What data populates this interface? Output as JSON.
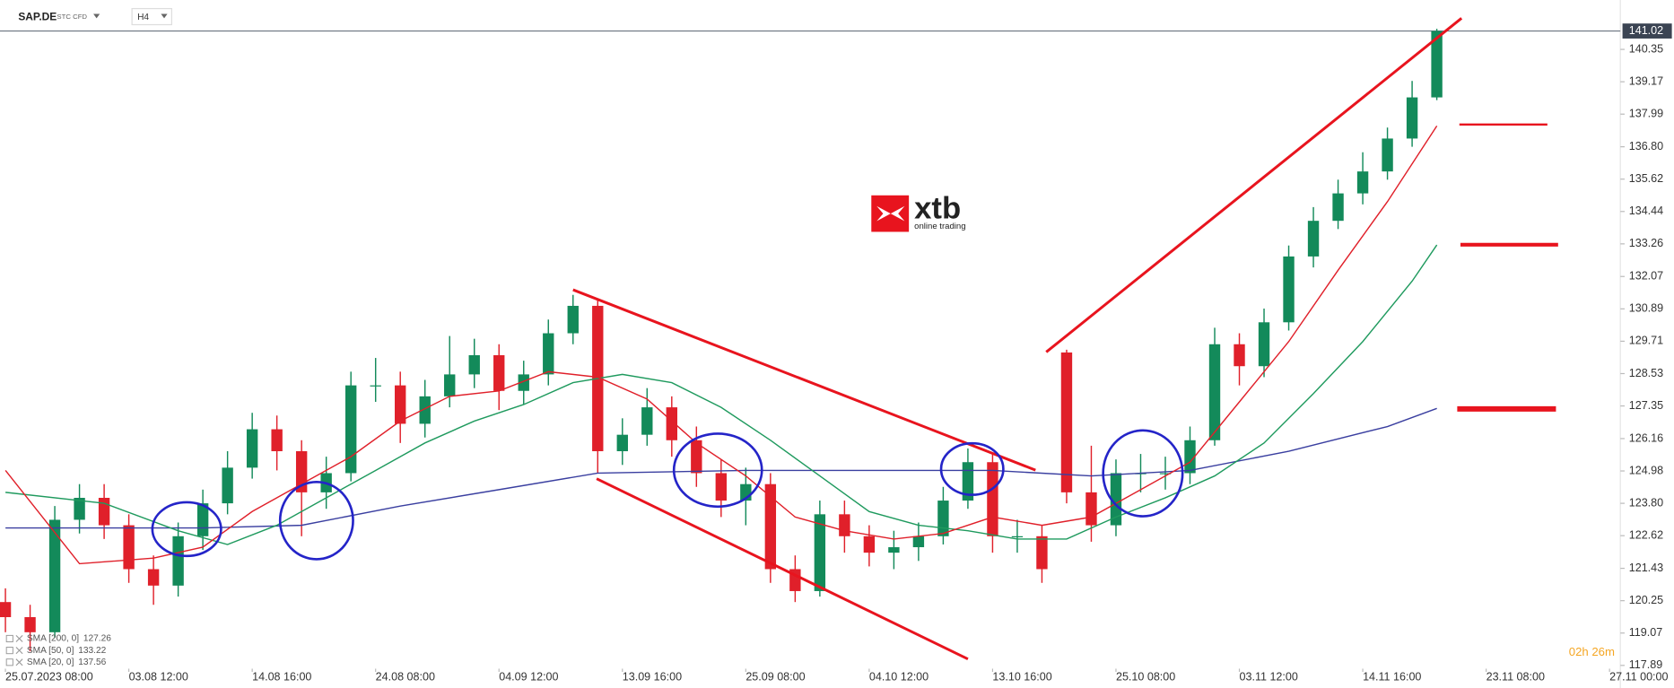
{
  "toolbar": {
    "symbol": "SAP.DE",
    "instrument_type": "STC CFD",
    "timeframe": "H4"
  },
  "logo": {
    "brand": "xtb",
    "tagline": "online trading"
  },
  "timer": "02h 26m",
  "chart_data": {
    "type": "candlestick",
    "up_color": "#138a5a",
    "down_color": "#e0202a",
    "open": [
      120.2,
      119.65,
      119.1,
      123.2,
      124.0,
      123.0,
      121.4,
      120.8,
      122.6,
      123.8,
      125.1,
      126.5,
      125.7,
      124.2,
      124.9,
      128.1,
      128.1,
      126.7,
      127.7,
      128.5,
      129.2,
      127.9,
      128.5,
      130.0,
      131.0,
      125.7,
      126.3,
      127.3,
      126.1,
      124.9,
      123.9,
      124.5,
      121.4,
      120.6,
      123.4,
      122.6,
      122.0,
      122.2,
      122.6,
      123.9,
      125.3,
      122.6,
      122.6,
      129.3,
      124.2,
      123.0,
      124.9,
      124.9,
      124.9,
      126.1,
      129.6,
      128.8,
      130.4,
      132.8,
      134.1,
      135.1,
      135.9,
      137.1,
      138.6
    ],
    "high": [
      120.7,
      120.1,
      123.7,
      124.5,
      124.5,
      123.4,
      121.9,
      123.1,
      124.3,
      125.7,
      127.1,
      127.0,
      126.1,
      125.5,
      128.6,
      129.1,
      128.6,
      128.3,
      129.9,
      129.8,
      129.6,
      129.0,
      130.5,
      131.4,
      131.2,
      126.9,
      128.0,
      127.7,
      126.6,
      125.4,
      125.1,
      124.9,
      121.9,
      123.9,
      123.9,
      123.0,
      122.8,
      123.1,
      124.4,
      125.8,
      125.6,
      123.2,
      123.0,
      129.4,
      125.9,
      125.4,
      125.6,
      125.5,
      126.6,
      130.2,
      130.0,
      130.9,
      133.2,
      134.6,
      135.6,
      136.6,
      137.5,
      139.2,
      141.1
    ],
    "low": [
      119.1,
      118.4,
      118.9,
      122.7,
      122.5,
      120.9,
      120.1,
      120.4,
      122.1,
      123.4,
      124.7,
      125.0,
      122.6,
      123.6,
      124.6,
      127.5,
      126.0,
      126.2,
      127.3,
      128.0,
      127.2,
      127.4,
      128.1,
      129.6,
      124.9,
      125.2,
      125.9,
      125.5,
      124.4,
      123.3,
      123.0,
      120.9,
      120.2,
      120.4,
      122.0,
      121.5,
      121.4,
      121.7,
      122.3,
      123.6,
      122.0,
      122.0,
      120.9,
      123.8,
      122.4,
      122.6,
      124.2,
      124.3,
      124.5,
      125.9,
      128.1,
      128.4,
      130.1,
      132.4,
      133.8,
      134.7,
      135.6,
      136.8,
      138.5
    ],
    "close": [
      119.65,
      119.1,
      123.2,
      124.0,
      123.0,
      121.4,
      120.8,
      122.6,
      123.8,
      125.1,
      126.5,
      125.7,
      124.2,
      124.9,
      128.1,
      128.1,
      126.7,
      127.7,
      128.5,
      129.2,
      127.9,
      128.5,
      130.0,
      131.0,
      125.7,
      126.3,
      127.3,
      126.1,
      124.9,
      123.9,
      124.5,
      121.4,
      120.6,
      123.4,
      122.6,
      122.0,
      122.2,
      122.6,
      123.9,
      125.3,
      122.6,
      122.6,
      121.4,
      124.2,
      123.0,
      124.9,
      124.9,
      124.9,
      126.1,
      129.6,
      128.8,
      130.4,
      132.8,
      134.1,
      135.1,
      135.9,
      137.1,
      138.6,
      141.02
    ],
    "series": [
      {
        "name": "SMA [200, 0]",
        "color": "#3a3fa0",
        "x": [
          0,
          5,
          8,
          12,
          16,
          20,
          24,
          30,
          36,
          40,
          44,
          48,
          52,
          56,
          58
        ],
        "values": [
          122.9,
          122.9,
          122.9,
          123.0,
          123.7,
          124.3,
          124.9,
          125.0,
          125.0,
          125.0,
          124.8,
          125.0,
          125.7,
          126.6,
          127.26
        ]
      },
      {
        "name": "SMA [50, 0]",
        "color": "#1f9a5e",
        "x": [
          0,
          4,
          7,
          9,
          11,
          13,
          15,
          17,
          19,
          21,
          23,
          25,
          27,
          29,
          31,
          33,
          35,
          37,
          39,
          41,
          43,
          45,
          47,
          49,
          51,
          53,
          55,
          57,
          58
        ],
        "values": [
          124.2,
          123.8,
          122.8,
          122.3,
          123.0,
          124.0,
          125.0,
          126.0,
          126.8,
          127.4,
          128.2,
          128.5,
          128.2,
          127.3,
          126.1,
          124.8,
          123.5,
          123.0,
          122.8,
          122.5,
          122.5,
          123.3,
          124.0,
          124.8,
          126.0,
          127.8,
          129.7,
          131.9,
          133.22
        ]
      },
      {
        "name": "SMA [20, 0]",
        "color": "#e0202a",
        "x": [
          0,
          3,
          6,
          8,
          10,
          12,
          14,
          16,
          18,
          20,
          22,
          24,
          26,
          28,
          30,
          32,
          34,
          36,
          38,
          40,
          42,
          44,
          46,
          48,
          50,
          52,
          54,
          56,
          58
        ],
        "values": [
          125.0,
          121.6,
          121.8,
          122.2,
          123.5,
          124.5,
          125.5,
          126.8,
          127.7,
          127.9,
          128.6,
          128.4,
          127.6,
          126.0,
          124.8,
          123.3,
          122.8,
          122.5,
          122.7,
          123.3,
          123.0,
          123.3,
          124.3,
          125.3,
          127.5,
          129.7,
          132.3,
          134.8,
          137.56
        ]
      }
    ],
    "xlim": [
      -0.22,
      65.22
    ],
    "xticks": [
      {
        "value": 0,
        "label": "25.07.2023 08:00"
      },
      {
        "value": 5,
        "label": "03.08 12:00"
      },
      {
        "value": 10,
        "label": "14.08 16:00"
      },
      {
        "value": 15,
        "label": "24.08 08:00"
      },
      {
        "value": 20,
        "label": "04.09 12:00"
      },
      {
        "value": 25,
        "label": "13.09 16:00"
      },
      {
        "value": 30,
        "label": "25.09 08:00"
      },
      {
        "value": 35,
        "label": "04.10 12:00"
      },
      {
        "value": 40,
        "label": "13.10 16:00"
      },
      {
        "value": 45,
        "label": "25.10 08:00"
      },
      {
        "value": 50,
        "label": "03.11 12:00"
      },
      {
        "value": 55,
        "label": "14.11 16:00"
      },
      {
        "value": 60,
        "label": "23.11 08:00"
      },
      {
        "value": 65,
        "label": "27.11 00:00"
      }
    ],
    "ylim": [
      117.81,
      141.29
    ],
    "yticks": [
      117.89,
      119.07,
      120.25,
      121.43,
      122.62,
      {
        "value": 123.8,
        "label": "123.80"
      },
      124.98,
      126.16,
      127.35,
      128.53,
      129.71,
      130.89,
      132.07,
      133.26,
      134.44,
      135.62,
      {
        "value": 136.8,
        "label": "136.80"
      },
      137.99,
      139.17,
      140.35
    ]
  }
}
